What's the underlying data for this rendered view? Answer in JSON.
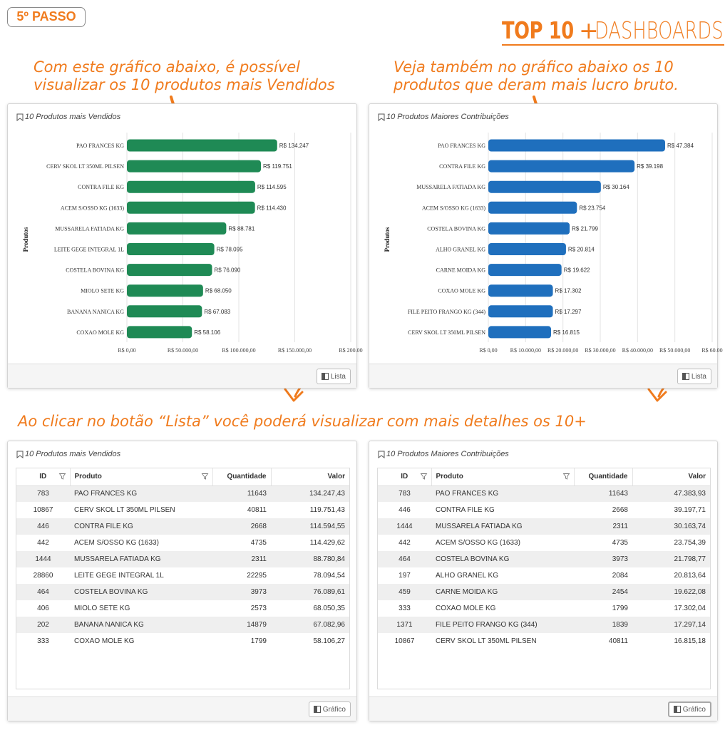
{
  "step_badge": "5º PASSO",
  "brand": {
    "top10": "TOP 10",
    "plus": "+",
    "dashboards": "DASHBOARDS"
  },
  "captions": {
    "left": [
      "Com este gráfico abaixo, é possível",
      "visualizar os 10 produtos mais Vendidos"
    ],
    "right": [
      "Veja também no gráfico abaixo os 10",
      "produtos que deram mais lucro bruto."
    ],
    "middle": "Ao clicar no botão “Lista” você poderá visualizar com mais detalhes os 10+"
  },
  "colors": {
    "accent": "#f07b1d",
    "green": "#1f8a55",
    "blue": "#1f6fbd"
  },
  "icons": {
    "bookmark": "bookmark-icon",
    "toggle": "panel-toggle-icon",
    "filter": "filter-icon",
    "arrow": "curved-arrow-icon"
  },
  "panels": {
    "top_left": {
      "title": "10 Produtos mais Vendidos",
      "button": "Lista"
    },
    "top_right": {
      "title": "10 Produtos Maiores Contribuições",
      "button": "Lista"
    },
    "bottom_left": {
      "title": "10 Produtos mais Vendidos",
      "button": "Gráfico"
    },
    "bottom_right": {
      "title": "10 Produtos Maiores Contribuições",
      "button": "Gráfico"
    }
  },
  "chart_data": [
    {
      "type": "bar",
      "orientation": "horizontal",
      "ylabel": "Produtos",
      "color": "#1f8a55",
      "categories": [
        "PAO FRANCES KG",
        "CERV SKOL LT 350ML PILSEN",
        "CONTRA FILE KG",
        "ACEM S/OSSO KG (1633)",
        "MUSSARELA FATIADA KG",
        "LEITE GEGE INTEGRAL 1L",
        "COSTELA BOVINA KG",
        "MIOLO SETE KG",
        "BANANA NANICA KG",
        "COXAO MOLE KG"
      ],
      "values": [
        134247,
        119751,
        114595,
        114430,
        88781,
        78095,
        76090,
        68050,
        67083,
        58106
      ],
      "labels": [
        "R$ 134.247",
        "R$ 119.751",
        "R$ 114.595",
        "R$ 114.430",
        "R$ 88.781",
        "R$ 78.095",
        "R$ 76.090",
        "R$ 68.050",
        "R$ 67.083",
        "R$ 58.106"
      ],
      "xticks": [
        "R$ 0,00",
        "R$ 50.000,00",
        "R$ 100.000,00",
        "R$ 150.000,00",
        "R$ 200.00"
      ],
      "xtick_values": [
        0,
        50000,
        100000,
        150000,
        200000
      ],
      "xlim": [
        0,
        200000
      ],
      "grid": true
    },
    {
      "type": "bar",
      "orientation": "horizontal",
      "ylabel": "Produtos",
      "color": "#1f6fbd",
      "categories": [
        "PAO FRANCES KG",
        "CONTRA FILE KG",
        "MUSSARELA FATIADA KG",
        "ACEM S/OSSO KG (1633)",
        "COSTELA BOVINA KG",
        "ALHO GRANEL KG",
        "CARNE MOIDA KG",
        "COXAO MOLE KG",
        "FILE PEITO FRANGO KG (344)",
        "CERV SKOL LT 350ML PILSEN"
      ],
      "values": [
        47384,
        39198,
        30164,
        23754,
        21799,
        20814,
        19622,
        17302,
        17297,
        16815
      ],
      "labels": [
        "R$ 47.384",
        "R$ 39.198",
        "R$ 30.164",
        "R$ 23.754",
        "R$ 21.799",
        "R$ 20.814",
        "R$ 19.622",
        "R$ 17.302",
        "R$ 17.297",
        "R$ 16.815"
      ],
      "xticks": [
        "R$ 0,00",
        "R$ 10.000,00",
        "R$ 20.000,00",
        "R$ 30.000,00",
        "R$ 40.000,00",
        "R$ 50.000,00",
        "R$ 60.00"
      ],
      "xtick_values": [
        0,
        10000,
        20000,
        30000,
        40000,
        50000,
        60000
      ],
      "xlim": [
        0,
        60000
      ],
      "grid": true
    }
  ],
  "table_headers": {
    "id": "ID",
    "produto": "Produto",
    "quantidade": "Quantidade",
    "valor": "Valor"
  },
  "table_left": [
    [
      "783",
      "PAO FRANCES KG",
      "11643",
      "134.247,43"
    ],
    [
      "10867",
      "CERV SKOL LT 350ML PILSEN",
      "40811",
      "119.751,43"
    ],
    [
      "446",
      "CONTRA FILE KG",
      "2668",
      "114.594,55"
    ],
    [
      "442",
      "ACEM S/OSSO KG (1633)",
      "4735",
      "114.429,62"
    ],
    [
      "1444",
      "MUSSARELA FATIADA KG",
      "2311",
      "88.780,84"
    ],
    [
      "28860",
      "LEITE GEGE INTEGRAL 1L",
      "22295",
      "78.094,54"
    ],
    [
      "464",
      "COSTELA BOVINA KG",
      "3973",
      "76.089,61"
    ],
    [
      "406",
      "MIOLO SETE KG",
      "2573",
      "68.050,35"
    ],
    [
      "202",
      "BANANA NANICA KG",
      "14879",
      "67.082,96"
    ],
    [
      "333",
      "COXAO MOLE KG",
      "1799",
      "58.106,27"
    ]
  ],
  "table_right": [
    [
      "783",
      "PAO FRANCES KG",
      "11643",
      "47.383,93"
    ],
    [
      "446",
      "CONTRA FILE KG",
      "2668",
      "39.197,71"
    ],
    [
      "1444",
      "MUSSARELA FATIADA KG",
      "2311",
      "30.163,74"
    ],
    [
      "442",
      "ACEM S/OSSO KG (1633)",
      "4735",
      "23.754,39"
    ],
    [
      "464",
      "COSTELA BOVINA KG",
      "3973",
      "21.798,77"
    ],
    [
      "197",
      "ALHO GRANEL KG",
      "2084",
      "20.813,64"
    ],
    [
      "459",
      "CARNE MOIDA KG",
      "2454",
      "19.622,08"
    ],
    [
      "333",
      "COXAO MOLE KG",
      "1799",
      "17.302,04"
    ],
    [
      "1371",
      "FILE PEITO FRANGO KG (344)",
      "1839",
      "17.297,14"
    ],
    [
      "10867",
      "CERV SKOL LT 350ML PILSEN",
      "40811",
      "16.815,18"
    ]
  ]
}
